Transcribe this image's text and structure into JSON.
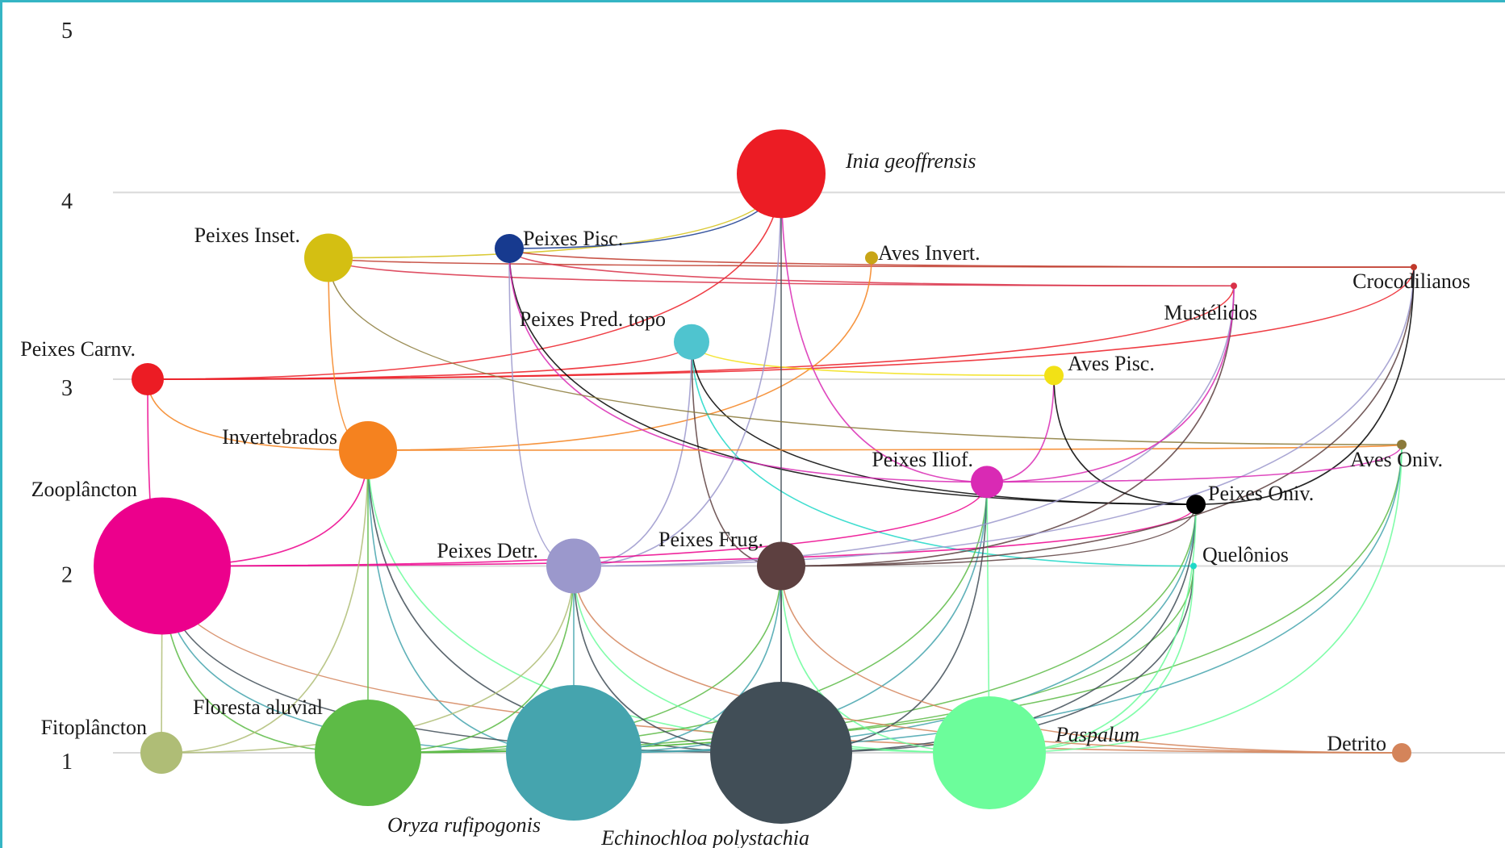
{
  "levels": [
    "1",
    "2",
    "3",
    "4",
    "5"
  ],
  "nodes": [
    {
      "id": "inia",
      "label": "Inia geoffrensis",
      "level": 4.1,
      "size": 55,
      "color": "#ec1c24",
      "italic": true
    },
    {
      "id": "pinset",
      "label": "Peixes Inset.",
      "level": 3.65,
      "size": 30,
      "color": "#d4bf12",
      "italic": false
    },
    {
      "id": "ppisc",
      "label": "Peixes Pisc.",
      "level": 3.7,
      "size": 18,
      "color": "#173a8f",
      "italic": false
    },
    {
      "id": "avinv",
      "label": "Aves Invert.",
      "level": 3.65,
      "size": 8,
      "color": "#c8a517",
      "italic": false
    },
    {
      "id": "croco",
      "label": "Crocodilianos",
      "level": 3.6,
      "size": 4,
      "color": "#c0392b",
      "italic": false
    },
    {
      "id": "must",
      "label": "Mustélidos",
      "level": 3.5,
      "size": 4,
      "color": "#d93048",
      "italic": false
    },
    {
      "id": "ppred",
      "label": "Peixes Pred. topo",
      "level": 3.2,
      "size": 22,
      "color": "#4fc4cf",
      "italic": false
    },
    {
      "id": "pcarn",
      "label": "Peixes  Carnv.",
      "level": 3.0,
      "size": 20,
      "color": "#ec1c24",
      "italic": false
    },
    {
      "id": "avpisc",
      "label": "Aves Pisc.",
      "level": 3.02,
      "size": 12,
      "color": "#f2e116",
      "italic": false
    },
    {
      "id": "inver",
      "label": "Invertebrados",
      "level": 2.62,
      "size": 36,
      "color": "#f5821f",
      "italic": false
    },
    {
      "id": "avoniv",
      "label": "Aves Oniv.",
      "level": 2.65,
      "size": 6,
      "color": "#8b7a3a",
      "italic": false
    },
    {
      "id": "piliof",
      "label": "Peixes Iliof.",
      "level": 2.45,
      "size": 20,
      "color": "#d92ab4",
      "italic": false
    },
    {
      "id": "poniv",
      "label": "Peixes Oniv.",
      "level": 2.33,
      "size": 12,
      "color": "#000000",
      "italic": false
    },
    {
      "id": "zoo",
      "label": "Zooplâncton",
      "level": 2.0,
      "size": 85,
      "color": "#ec008c",
      "italic": false
    },
    {
      "id": "pdetr",
      "label": "Peixes Detr.",
      "level": 2.0,
      "size": 34,
      "color": "#9b98cc",
      "italic": false
    },
    {
      "id": "pfrug",
      "label": "Peixes Frug.",
      "level": 2.0,
      "size": 30,
      "color": "#5d4040",
      "italic": false
    },
    {
      "id": "quel",
      "label": "Quelônios",
      "level": 2.0,
      "size": 4,
      "color": "#1fd8c8",
      "italic": false
    },
    {
      "id": "fito",
      "label": "Fitoplâncton",
      "level": 1.0,
      "size": 26,
      "color": "#afbd76",
      "italic": false
    },
    {
      "id": "flor",
      "label": "Floresta aluvial",
      "level": 1.0,
      "size": 66,
      "color": "#5dbb46",
      "italic": false
    },
    {
      "id": "oryza",
      "label": "Oryza rufipogonis",
      "level": 1.0,
      "size": 84,
      "color": "#45a4ae",
      "italic": true
    },
    {
      "id": "echino",
      "label": "Echinochloa polystachia",
      "level": 1.0,
      "size": 88,
      "color": "#414e57",
      "italic": true
    },
    {
      "id": "pasp",
      "label": "Paspalum",
      "level": 1.0,
      "size": 70,
      "color": "#6cfd9b",
      "italic": true
    },
    {
      "id": "detr",
      "label": "Detrito",
      "level": 1.0,
      "size": 12,
      "color": "#d4845a",
      "italic": false
    }
  ],
  "links": [
    [
      "pcarn",
      "inia"
    ],
    [
      "pinset",
      "inia"
    ],
    [
      "ppisc",
      "inia"
    ],
    [
      "ppisc",
      "croco"
    ],
    [
      "pinset",
      "croco"
    ],
    [
      "pcarn",
      "croco"
    ],
    [
      "pcarn",
      "must"
    ],
    [
      "pinset",
      "must"
    ],
    [
      "ppisc",
      "must"
    ],
    [
      "pcarn",
      "ppred"
    ],
    [
      "zoo",
      "pcarn"
    ],
    [
      "pcarn",
      "inver"
    ],
    [
      "inver",
      "pinset"
    ],
    [
      "inver",
      "avinv"
    ],
    [
      "ppred",
      "avpisc"
    ],
    [
      "ppred",
      "poniv"
    ],
    [
      "ppred",
      "quel"
    ],
    [
      "ppred",
      "pfrug"
    ],
    [
      "ppred",
      "pdetr"
    ],
    [
      "ppisc",
      "poniv"
    ],
    [
      "ppisc",
      "pdetr"
    ],
    [
      "ppisc",
      "piliof"
    ],
    [
      "inia",
      "pdetr"
    ],
    [
      "inia",
      "echino"
    ],
    [
      "inia",
      "piliof"
    ],
    [
      "pinset",
      "avoniv"
    ],
    [
      "inver",
      "avoniv"
    ],
    [
      "inver",
      "oryza"
    ],
    [
      "inver",
      "echino"
    ],
    [
      "inver",
      "pasp"
    ],
    [
      "zoo",
      "inver"
    ],
    [
      "zoo",
      "poniv"
    ],
    [
      "zoo",
      "piliof"
    ],
    [
      "zoo",
      "flor"
    ],
    [
      "zoo",
      "oryza"
    ],
    [
      "zoo",
      "echino"
    ],
    [
      "zoo",
      "detr"
    ],
    [
      "zoo",
      "fito"
    ],
    [
      "fito",
      "inver"
    ],
    [
      "fito",
      "pdetr"
    ],
    [
      "flor",
      "inver"
    ],
    [
      "flor",
      "pdetr"
    ],
    [
      "flor",
      "pfrug"
    ],
    [
      "flor",
      "piliof"
    ],
    [
      "flor",
      "poniv"
    ],
    [
      "flor",
      "avoniv"
    ],
    [
      "flor",
      "quel"
    ],
    [
      "oryza",
      "pdetr"
    ],
    [
      "oryza",
      "pfrug"
    ],
    [
      "oryza",
      "piliof"
    ],
    [
      "oryza",
      "poniv"
    ],
    [
      "oryza",
      "avoniv"
    ],
    [
      "echino",
      "pdetr"
    ],
    [
      "echino",
      "pfrug"
    ],
    [
      "echino",
      "piliof"
    ],
    [
      "echino",
      "poniv"
    ],
    [
      "echino",
      "quel"
    ],
    [
      "pasp",
      "pdetr"
    ],
    [
      "pasp",
      "pfrug"
    ],
    [
      "pasp",
      "piliof"
    ],
    [
      "pasp",
      "quel"
    ],
    [
      "pasp",
      "avoniv"
    ],
    [
      "pasp",
      "poniv"
    ],
    [
      "detr",
      "pfrug"
    ],
    [
      "detr",
      "pdetr"
    ],
    [
      "pfrug",
      "croco"
    ],
    [
      "pfrug",
      "must"
    ],
    [
      "pfrug",
      "poniv"
    ],
    [
      "pdetr",
      "croco"
    ],
    [
      "pdetr",
      "must"
    ],
    [
      "piliof",
      "must"
    ],
    [
      "piliof",
      "avpisc"
    ],
    [
      "poniv",
      "croco"
    ],
    [
      "poniv",
      "avpisc"
    ],
    [
      "avoniv",
      "piliof"
    ]
  ]
}
